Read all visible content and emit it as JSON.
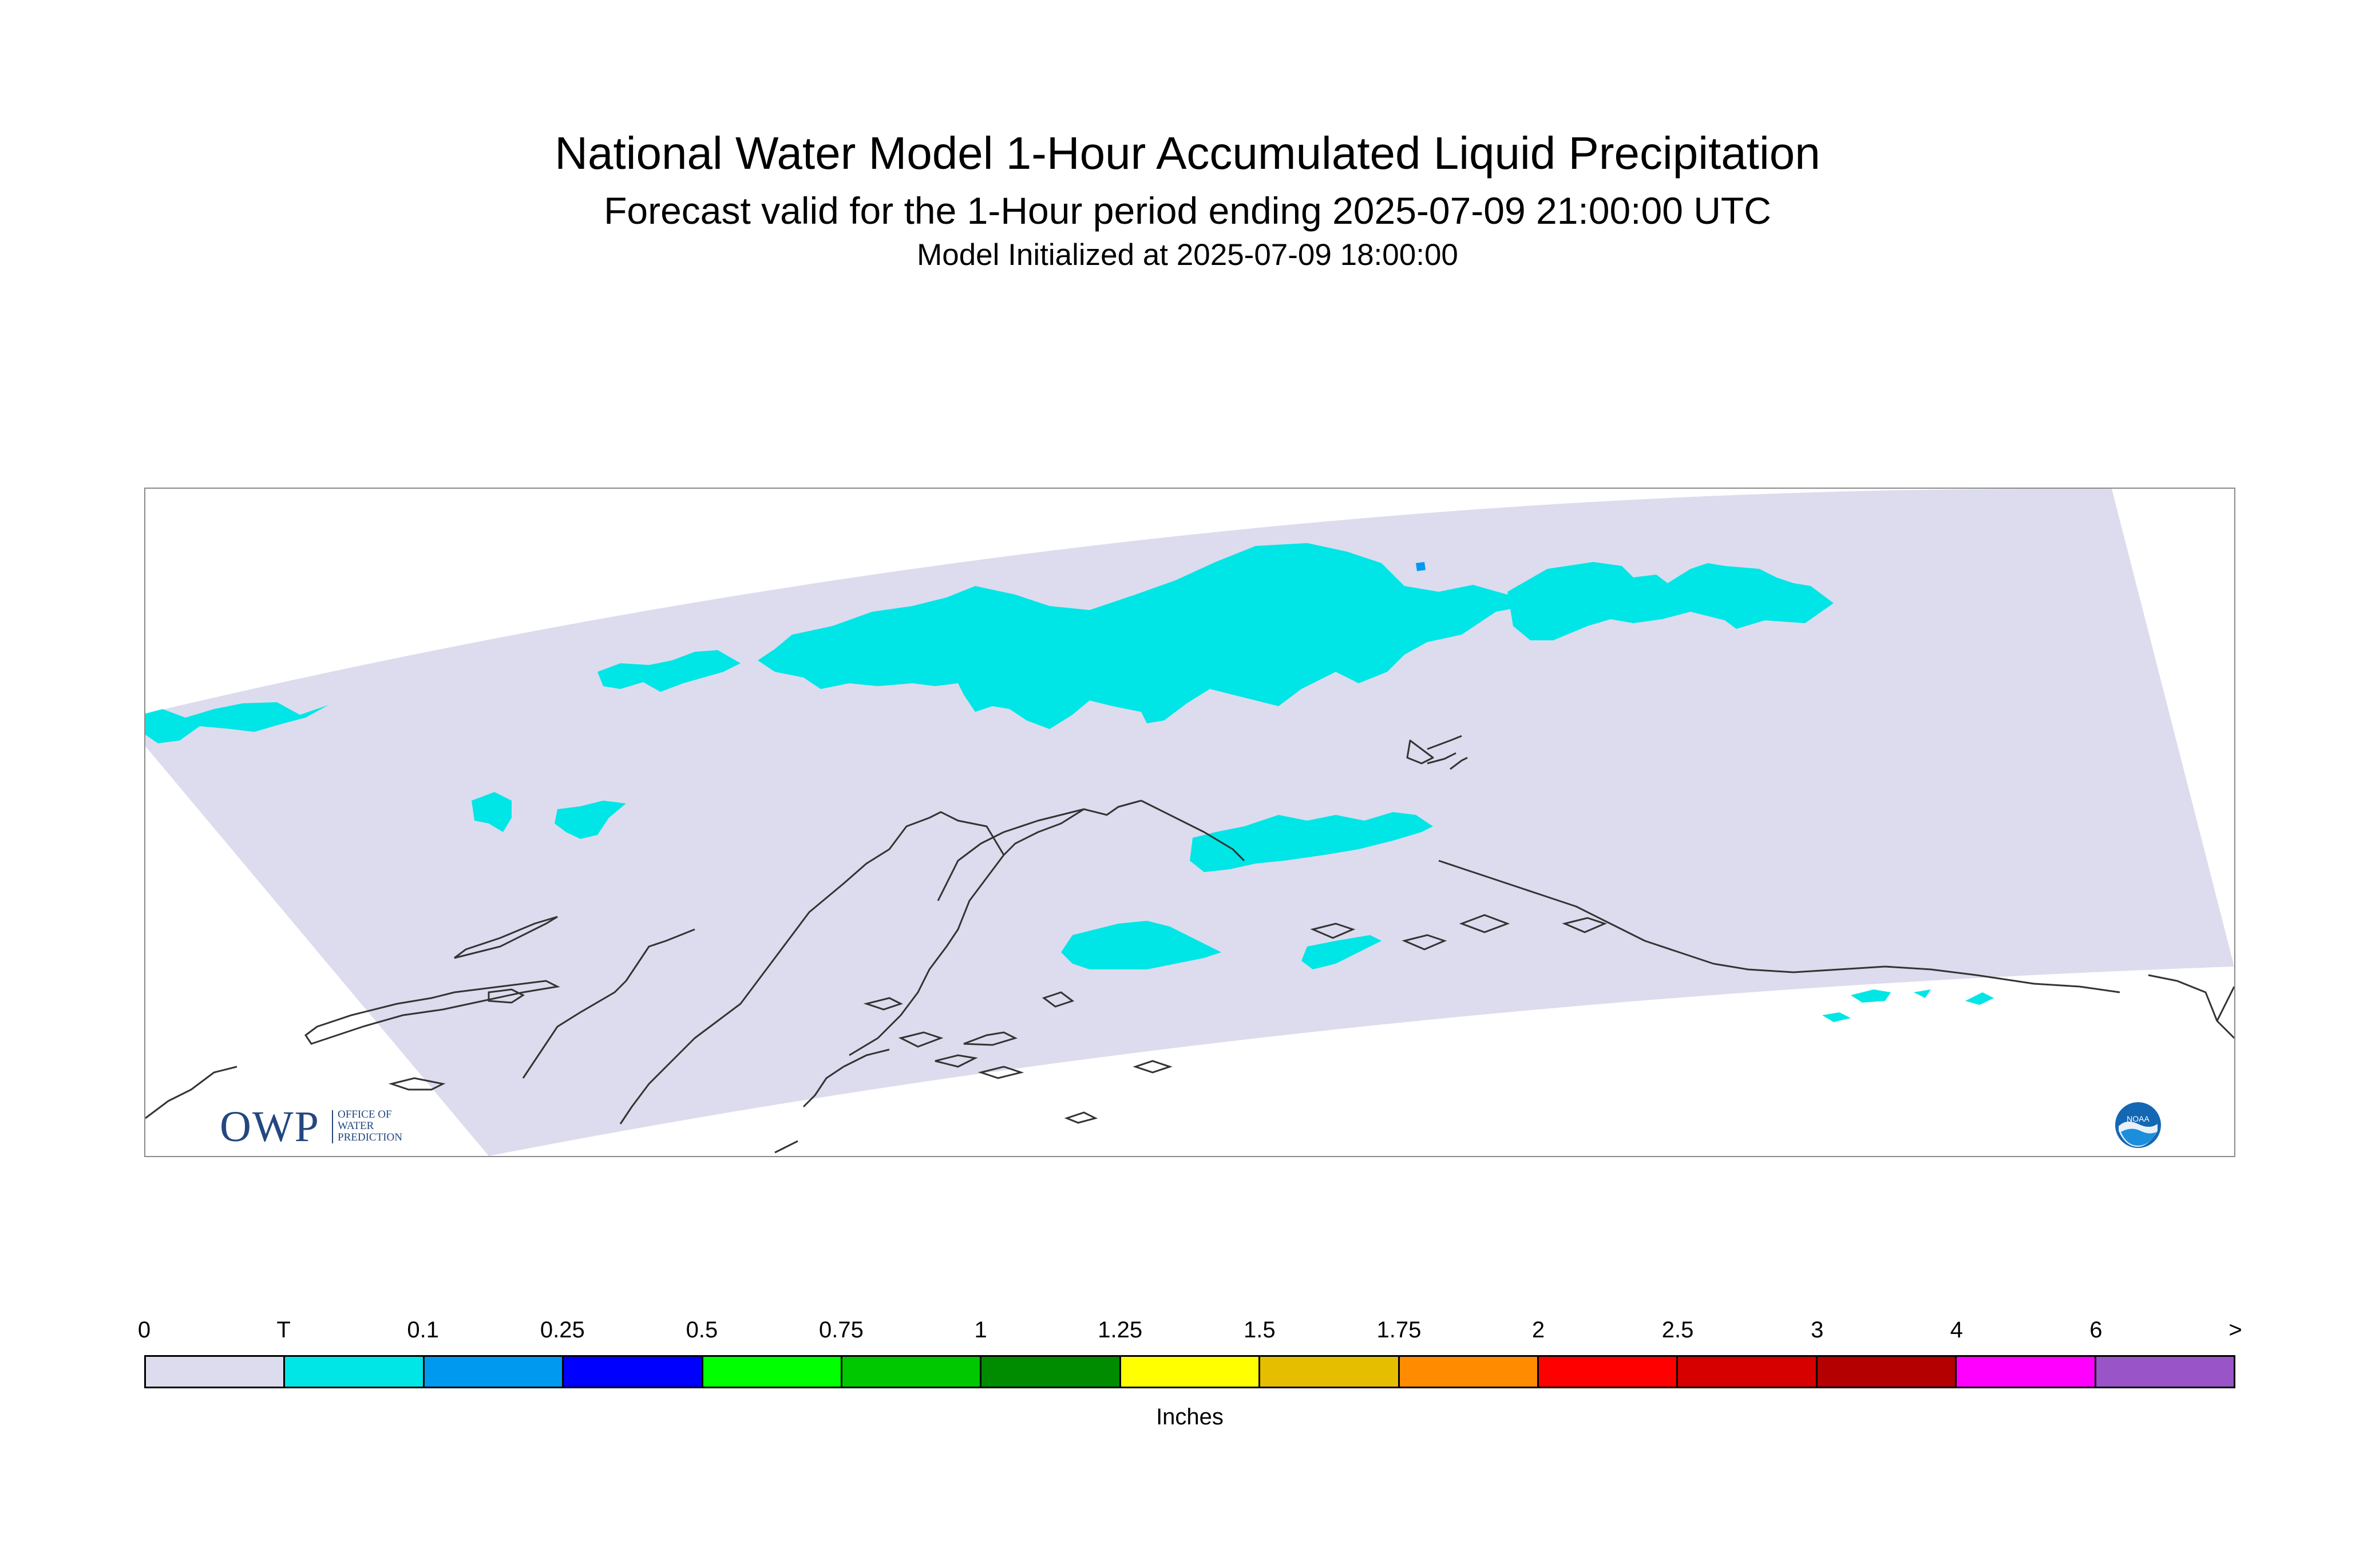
{
  "header": {
    "title": "National Water Model 1-Hour Accumulated Liquid Precipitation",
    "subtitle": "Forecast valid for the 1-Hour period ending 2025-07-09 21:00:00 UTC",
    "init_line": "Model Initialized at 2025-07-09 18:00:00"
  },
  "map": {
    "domain_color": "#dcdcee",
    "coast_color": "#333333",
    "dominant_class": "T",
    "owp_logo": {
      "letters": "OWP",
      "words": [
        "OFFICE OF",
        "WATER",
        "PREDICTION"
      ],
      "color": "#23477f"
    },
    "noaa_logo": {
      "text": "NOAA",
      "color": "#1467b3"
    }
  },
  "legend": {
    "units": "Inches",
    "tick_labels": [
      "0",
      "T",
      "0.1",
      "0.25",
      "0.5",
      "0.75",
      "1",
      "1.25",
      "1.5",
      "1.75",
      "2",
      "2.5",
      "3",
      "4",
      "6",
      ">"
    ],
    "colors": [
      "#dcdcee",
      "#00e6e6",
      "#0099f0",
      "#0000ff",
      "#00ff00",
      "#00c800",
      "#008c00",
      "#ffff00",
      "#e6be00",
      "#ff8c00",
      "#ff0000",
      "#d70000",
      "#b40000",
      "#ff00ff",
      "#9955c8"
    ]
  }
}
